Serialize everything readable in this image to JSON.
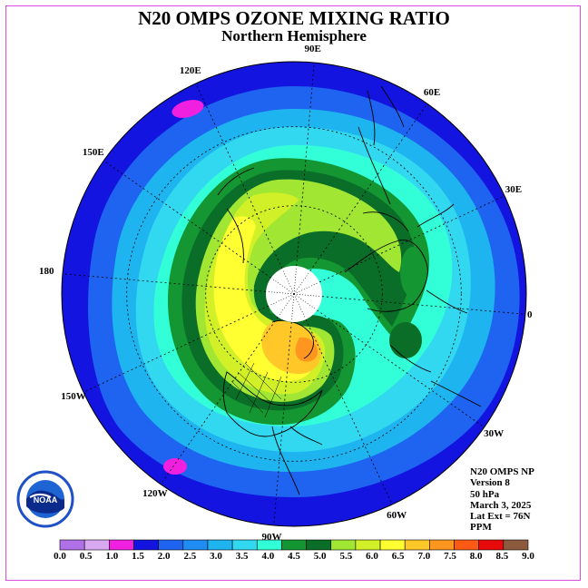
{
  "title": "N20 OMPS OZONE MIXING RATIO",
  "subtitle": "Northern Hemisphere",
  "longitude_labels": [
    {
      "id": "lon-90e",
      "text": "90E"
    },
    {
      "id": "lon-120e",
      "text": "120E"
    },
    {
      "id": "lon-60e",
      "text": "60E"
    },
    {
      "id": "lon-150e",
      "text": "150E"
    },
    {
      "id": "lon-30e",
      "text": "30E"
    },
    {
      "id": "lon-180",
      "text": "180"
    },
    {
      "id": "lon-0",
      "text": "0"
    },
    {
      "id": "lon-150w",
      "text": "150W"
    },
    {
      "id": "lon-30w",
      "text": "30W"
    },
    {
      "id": "lon-120w",
      "text": "120W"
    },
    {
      "id": "lon-60w",
      "text": "60W"
    },
    {
      "id": "lon-90w",
      "text": "90W"
    }
  ],
  "info": {
    "product": "N20 OMPS NP",
    "version": "Version 8",
    "level": "50 hPa",
    "date": "March 3, 2025",
    "lat_ext": "Lat Ext = 76N",
    "units": "PPM"
  },
  "logo": {
    "name": "noaa-logo",
    "text": "NOAA"
  },
  "colorbar": {
    "labels": [
      "0.0",
      "0.5",
      "1.0",
      "1.5",
      "2.0",
      "2.5",
      "3.0",
      "3.5",
      "4.0",
      "4.5",
      "5.0",
      "5.5",
      "6.0",
      "6.5",
      "7.0",
      "7.5",
      "8.0",
      "8.5",
      "9.0"
    ],
    "colors": [
      "#b070e8",
      "#d8a8f0",
      "#f020e0",
      "#1414e0",
      "#1e64f0",
      "#1e8cf0",
      "#1eb4f0",
      "#32d8f0",
      "#32ffd8",
      "#149632",
      "#0a6e28",
      "#a0e632",
      "#d2f028",
      "#ffff32",
      "#ffc828",
      "#ff9620",
      "#ff5a14",
      "#e60a0a",
      "#8c5a3c"
    ]
  },
  "map_colors": {
    "ocean_outer": "#1414e0",
    "band_2": "#1e64f0",
    "band_3": "#1eb4f0",
    "band_35": "#32d8f0",
    "band_4": "#32ffd8",
    "band_45": "#149632",
    "band_5": "#0a6e28",
    "band_55": "#a0e632",
    "band_6": "#d2f028",
    "band_65": "#ffff32",
    "band_7": "#ffc828",
    "band_75": "#ff9620",
    "pole_fill": "#ffffff"
  }
}
